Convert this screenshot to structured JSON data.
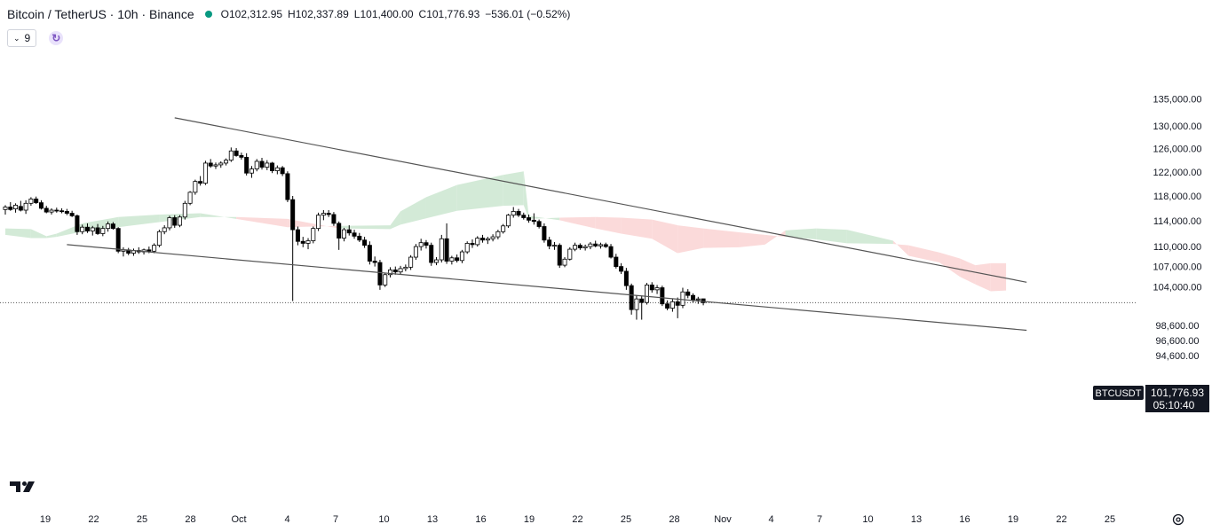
{
  "header": {
    "title": "Bitcoin / TetherUS · 10h · Binance",
    "open_label": "O",
    "open": "102,312.95",
    "high_label": "H",
    "high": "102,337.89",
    "low_label": "L",
    "low": "101,400.00",
    "close_label": "C",
    "close": "101,776.93",
    "change": "−536.01 (−0.52%)"
  },
  "indicators": {
    "count": "9"
  },
  "price_tag": {
    "symbol": "BTCUSDT",
    "price": "101,776.93",
    "countdown": "05:10:40"
  },
  "colors": {
    "up": "#ffffff",
    "down": "#000000",
    "candle_outline": "#000000",
    "cloud_bull": "#d3ead7",
    "cloud_bear": "#fbdada",
    "trendline": "#555555",
    "axis_text": "#131722"
  },
  "icons": [
    "chevron-down-icon",
    "sync-icon",
    "tradingview-logo",
    "settings-icon"
  ],
  "chart_data": {
    "type": "candlestick",
    "y_axis": {
      "ticks": [
        135000,
        130000,
        126000,
        122000,
        118000,
        114000,
        110000,
        107000,
        104000,
        98600,
        96600,
        94600
      ],
      "tick_labels": [
        "135,000.00",
        "130,000.00",
        "126,000.00",
        "122,000.00",
        "118,000.00",
        "114,000.00",
        "110,000.00",
        "107,000.00",
        "104,000.00",
        "98,600.00",
        "96,600.00",
        "94,600.00"
      ],
      "scale": "log"
    },
    "x_axis": {
      "labels": [
        "19",
        "22",
        "25",
        "28",
        "Oct",
        "4",
        "7",
        "10",
        "13",
        "16",
        "19",
        "22",
        "25",
        "28",
        "Nov",
        "4",
        "7",
        "10",
        "13",
        "16",
        "19",
        "22",
        "25"
      ]
    },
    "last_price": 101776.93,
    "candles": [
      {
        "o": 115800,
        "h": 116500,
        "l": 115000,
        "c": 116200
      },
      {
        "o": 116200,
        "h": 117000,
        "l": 115600,
        "c": 115800
      },
      {
        "o": 115900,
        "h": 116800,
        "l": 115300,
        "c": 116500
      },
      {
        "o": 116300,
        "h": 117200,
        "l": 115500,
        "c": 115700
      },
      {
        "o": 115700,
        "h": 117300,
        "l": 115100,
        "c": 116800
      },
      {
        "o": 116800,
        "h": 117800,
        "l": 116400,
        "c": 117500
      },
      {
        "o": 117500,
        "h": 117900,
        "l": 116700,
        "c": 116900
      },
      {
        "o": 116900,
        "h": 117300,
        "l": 115800,
        "c": 116000
      },
      {
        "o": 116000,
        "h": 116400,
        "l": 115200,
        "c": 115400
      },
      {
        "o": 115400,
        "h": 116000,
        "l": 115000,
        "c": 115700
      },
      {
        "o": 115700,
        "h": 116100,
        "l": 115300,
        "c": 115600
      },
      {
        "o": 115600,
        "h": 116000,
        "l": 115200,
        "c": 115500
      },
      {
        "o": 115500,
        "h": 115900,
        "l": 114900,
        "c": 115200
      },
      {
        "o": 115200,
        "h": 115600,
        "l": 114600,
        "c": 114800
      },
      {
        "o": 114800,
        "h": 115000,
        "l": 111800,
        "c": 112300
      },
      {
        "o": 112300,
        "h": 113400,
        "l": 111900,
        "c": 113000
      },
      {
        "o": 113000,
        "h": 113600,
        "l": 112100,
        "c": 112400
      },
      {
        "o": 112400,
        "h": 113200,
        "l": 111700,
        "c": 112900
      },
      {
        "o": 112900,
        "h": 113500,
        "l": 111800,
        "c": 112000
      },
      {
        "o": 112000,
        "h": 113200,
        "l": 111600,
        "c": 112800
      },
      {
        "o": 112800,
        "h": 113900,
        "l": 112300,
        "c": 113500
      },
      {
        "o": 113500,
        "h": 113800,
        "l": 112600,
        "c": 112800
      },
      {
        "o": 112800,
        "h": 113000,
        "l": 109000,
        "c": 109300
      },
      {
        "o": 109300,
        "h": 109900,
        "l": 108500,
        "c": 109500
      },
      {
        "o": 109500,
        "h": 109800,
        "l": 108700,
        "c": 109000
      },
      {
        "o": 109000,
        "h": 109700,
        "l": 108600,
        "c": 109400
      },
      {
        "o": 109400,
        "h": 109900,
        "l": 108900,
        "c": 109200
      },
      {
        "o": 109200,
        "h": 109700,
        "l": 108800,
        "c": 109500
      },
      {
        "o": 109500,
        "h": 110000,
        "l": 109000,
        "c": 109300
      },
      {
        "o": 109300,
        "h": 110500,
        "l": 109000,
        "c": 110200
      },
      {
        "o": 110200,
        "h": 112600,
        "l": 109900,
        "c": 112300
      },
      {
        "o": 112300,
        "h": 113300,
        "l": 111900,
        "c": 112900
      },
      {
        "o": 112900,
        "h": 114800,
        "l": 112500,
        "c": 114500
      },
      {
        "o": 114500,
        "h": 114900,
        "l": 112900,
        "c": 113300
      },
      {
        "o": 113300,
        "h": 114900,
        "l": 113000,
        "c": 114600
      },
      {
        "o": 114600,
        "h": 117200,
        "l": 114200,
        "c": 116800
      },
      {
        "o": 116800,
        "h": 118800,
        "l": 116500,
        "c": 118600
      },
      {
        "o": 118600,
        "h": 120700,
        "l": 118200,
        "c": 120400
      },
      {
        "o": 120400,
        "h": 121300,
        "l": 119700,
        "c": 120100
      },
      {
        "o": 120100,
        "h": 123900,
        "l": 119800,
        "c": 123500
      },
      {
        "o": 123500,
        "h": 124200,
        "l": 122700,
        "c": 123000
      },
      {
        "o": 123000,
        "h": 123600,
        "l": 122500,
        "c": 123200
      },
      {
        "o": 123200,
        "h": 123800,
        "l": 122700,
        "c": 123500
      },
      {
        "o": 123500,
        "h": 124300,
        "l": 123100,
        "c": 124000
      },
      {
        "o": 124000,
        "h": 126200,
        "l": 123700,
        "c": 125600
      },
      {
        "o": 125600,
        "h": 126100,
        "l": 124600,
        "c": 124800
      },
      {
        "o": 124800,
        "h": 125300,
        "l": 124100,
        "c": 124500
      },
      {
        "o": 124500,
        "h": 125200,
        "l": 121400,
        "c": 121800
      },
      {
        "o": 121800,
        "h": 123000,
        "l": 121000,
        "c": 122500
      },
      {
        "o": 122500,
        "h": 124200,
        "l": 122100,
        "c": 123800
      },
      {
        "o": 123800,
        "h": 124400,
        "l": 122400,
        "c": 122800
      },
      {
        "o": 122800,
        "h": 124000,
        "l": 122300,
        "c": 123500
      },
      {
        "o": 123500,
        "h": 123700,
        "l": 121800,
        "c": 122200
      },
      {
        "o": 122200,
        "h": 123100,
        "l": 121600,
        "c": 122700
      },
      {
        "o": 122700,
        "h": 123000,
        "l": 121300,
        "c": 121700
      },
      {
        "o": 121700,
        "h": 122100,
        "l": 117000,
        "c": 117400
      },
      {
        "o": 117400,
        "h": 118000,
        "l": 102000,
        "c": 112600
      },
      {
        "o": 112600,
        "h": 113100,
        "l": 110200,
        "c": 110800
      },
      {
        "o": 110800,
        "h": 111500,
        "l": 109900,
        "c": 110500
      },
      {
        "o": 110500,
        "h": 111300,
        "l": 109600,
        "c": 110900
      },
      {
        "o": 110900,
        "h": 113100,
        "l": 110500,
        "c": 112800
      },
      {
        "o": 112800,
        "h": 115300,
        "l": 112400,
        "c": 114900
      },
      {
        "o": 114900,
        "h": 115700,
        "l": 114100,
        "c": 115200
      },
      {
        "o": 115200,
        "h": 115700,
        "l": 114600,
        "c": 115000
      },
      {
        "o": 115000,
        "h": 115400,
        "l": 113200,
        "c": 113600
      },
      {
        "o": 113600,
        "h": 113900,
        "l": 109500,
        "c": 111300
      },
      {
        "o": 111300,
        "h": 112900,
        "l": 110800,
        "c": 112600
      },
      {
        "o": 112600,
        "h": 113300,
        "l": 111700,
        "c": 112100
      },
      {
        "o": 112100,
        "h": 112600,
        "l": 111200,
        "c": 111600
      },
      {
        "o": 111600,
        "h": 112100,
        "l": 110700,
        "c": 111000
      },
      {
        "o": 111000,
        "h": 111500,
        "l": 109800,
        "c": 110200
      },
      {
        "o": 110200,
        "h": 110800,
        "l": 107300,
        "c": 107800
      },
      {
        "o": 107800,
        "h": 108500,
        "l": 107000,
        "c": 107600
      },
      {
        "o": 107600,
        "h": 108000,
        "l": 103600,
        "c": 104300
      },
      {
        "o": 104300,
        "h": 106100,
        "l": 104000,
        "c": 105800
      },
      {
        "o": 105800,
        "h": 106900,
        "l": 105400,
        "c": 106500
      },
      {
        "o": 106500,
        "h": 107000,
        "l": 105800,
        "c": 106200
      },
      {
        "o": 106200,
        "h": 107100,
        "l": 105900,
        "c": 106700
      },
      {
        "o": 106700,
        "h": 107300,
        "l": 106300,
        "c": 106900
      },
      {
        "o": 106900,
        "h": 108700,
        "l": 106500,
        "c": 108400
      },
      {
        "o": 108400,
        "h": 110400,
        "l": 108000,
        "c": 110000
      },
      {
        "o": 110000,
        "h": 111200,
        "l": 109400,
        "c": 110600
      },
      {
        "o": 110600,
        "h": 111000,
        "l": 109700,
        "c": 110200
      },
      {
        "o": 110200,
        "h": 110600,
        "l": 107100,
        "c": 107600
      },
      {
        "o": 107600,
        "h": 108400,
        "l": 107200,
        "c": 108000
      },
      {
        "o": 108000,
        "h": 111800,
        "l": 107600,
        "c": 111200
      },
      {
        "o": 111200,
        "h": 113600,
        "l": 107400,
        "c": 107800
      },
      {
        "o": 107800,
        "h": 108600,
        "l": 107300,
        "c": 108300
      },
      {
        "o": 108300,
        "h": 108800,
        "l": 107600,
        "c": 107900
      },
      {
        "o": 107900,
        "h": 109500,
        "l": 107500,
        "c": 109200
      },
      {
        "o": 109200,
        "h": 110800,
        "l": 108900,
        "c": 110500
      },
      {
        "o": 110500,
        "h": 111100,
        "l": 109800,
        "c": 110300
      },
      {
        "o": 110300,
        "h": 111600,
        "l": 110000,
        "c": 111300
      },
      {
        "o": 111300,
        "h": 111800,
        "l": 110600,
        "c": 111000
      },
      {
        "o": 111000,
        "h": 111500,
        "l": 110400,
        "c": 111200
      },
      {
        "o": 111200,
        "h": 111900,
        "l": 110800,
        "c": 111500
      },
      {
        "o": 111500,
        "h": 112600,
        "l": 111100,
        "c": 112300
      },
      {
        "o": 112300,
        "h": 113500,
        "l": 112000,
        "c": 113200
      },
      {
        "o": 113200,
        "h": 115100,
        "l": 112900,
        "c": 114900
      },
      {
        "o": 114900,
        "h": 116200,
        "l": 114500,
        "c": 115500
      },
      {
        "o": 115500,
        "h": 115900,
        "l": 114600,
        "c": 114900
      },
      {
        "o": 114900,
        "h": 115300,
        "l": 114200,
        "c": 114500
      },
      {
        "o": 114500,
        "h": 115000,
        "l": 113700,
        "c": 114100
      },
      {
        "o": 114100,
        "h": 115200,
        "l": 113400,
        "c": 113900
      },
      {
        "o": 113900,
        "h": 114200,
        "l": 112800,
        "c": 113100
      },
      {
        "o": 113100,
        "h": 113600,
        "l": 110600,
        "c": 111000
      },
      {
        "o": 111000,
        "h": 111500,
        "l": 109600,
        "c": 110100
      },
      {
        "o": 110100,
        "h": 110700,
        "l": 109500,
        "c": 110200
      },
      {
        "o": 110200,
        "h": 110500,
        "l": 106800,
        "c": 107200
      },
      {
        "o": 107200,
        "h": 108400,
        "l": 106900,
        "c": 108100
      },
      {
        "o": 108100,
        "h": 109900,
        "l": 107900,
        "c": 109600
      },
      {
        "o": 109600,
        "h": 110600,
        "l": 109300,
        "c": 110200
      },
      {
        "o": 110200,
        "h": 110500,
        "l": 109500,
        "c": 109800
      },
      {
        "o": 109800,
        "h": 110300,
        "l": 109400,
        "c": 110000
      },
      {
        "o": 110000,
        "h": 110700,
        "l": 109600,
        "c": 110400
      },
      {
        "o": 110400,
        "h": 110900,
        "l": 109900,
        "c": 110100
      },
      {
        "o": 110100,
        "h": 110600,
        "l": 109700,
        "c": 110300
      },
      {
        "o": 110300,
        "h": 110600,
        "l": 109800,
        "c": 110000
      },
      {
        "o": 110000,
        "h": 110400,
        "l": 108200,
        "c": 108400
      },
      {
        "o": 108400,
        "h": 108900,
        "l": 106700,
        "c": 107000
      },
      {
        "o": 107000,
        "h": 107500,
        "l": 105900,
        "c": 106300
      },
      {
        "o": 106300,
        "h": 106800,
        "l": 103600,
        "c": 104200
      },
      {
        "o": 104200,
        "h": 104500,
        "l": 100100,
        "c": 100800
      },
      {
        "o": 100800,
        "h": 102800,
        "l": 99400,
        "c": 102300
      },
      {
        "o": 102300,
        "h": 102800,
        "l": 99400,
        "c": 101800
      },
      {
        "o": 101800,
        "h": 104600,
        "l": 101500,
        "c": 104300
      },
      {
        "o": 104300,
        "h": 104700,
        "l": 103200,
        "c": 103600
      },
      {
        "o": 103600,
        "h": 104300,
        "l": 103000,
        "c": 103900
      },
      {
        "o": 103900,
        "h": 104200,
        "l": 101300,
        "c": 101600
      },
      {
        "o": 101600,
        "h": 102100,
        "l": 100700,
        "c": 101000
      },
      {
        "o": 101000,
        "h": 102300,
        "l": 100500,
        "c": 101900
      },
      {
        "o": 101900,
        "h": 102500,
        "l": 99600,
        "c": 101400
      },
      {
        "o": 101400,
        "h": 103900,
        "l": 101000,
        "c": 103300
      },
      {
        "o": 103300,
        "h": 103700,
        "l": 102400,
        "c": 102800
      },
      {
        "o": 102800,
        "h": 103100,
        "l": 101800,
        "c": 102200
      },
      {
        "o": 102200,
        "h": 102600,
        "l": 101600,
        "c": 102300
      },
      {
        "o": 102312.95,
        "h": 102337.89,
        "l": 101400,
        "c": 101776.93
      }
    ],
    "trendlines": [
      {
        "t1": 33,
        "p1": 131500,
        "t2": 199,
        "p2": 104700
      },
      {
        "t1": 12,
        "p1": 110300,
        "t2": 199,
        "p2": 97950
      }
    ],
    "cloud": [
      {
        "i": 0,
        "a": 112800,
        "b": 111800
      },
      {
        "i": 5,
        "a": 112700,
        "b": 111300
      },
      {
        "i": 8,
        "a": 111600,
        "b": 111300
      },
      {
        "i": 10,
        "a": 112000,
        "b": 111500
      },
      {
        "i": 15,
        "a": 113600,
        "b": 112300
      },
      {
        "i": 22,
        "a": 114600,
        "b": 113000
      },
      {
        "i": 30,
        "a": 115000,
        "b": 113800
      },
      {
        "i": 38,
        "a": 115200,
        "b": 114600
      },
      {
        "i": 45,
        "a": 114300,
        "b": 114600
      },
      {
        "i": 55,
        "a": 113000,
        "b": 114300
      },
      {
        "i": 65,
        "a": 113200,
        "b": 112800
      },
      {
        "i": 75,
        "a": 113300,
        "b": 112700
      },
      {
        "i": 77,
        "a": 115500,
        "b": 113400
      },
      {
        "i": 82,
        "a": 117800,
        "b": 114400
      },
      {
        "i": 88,
        "a": 119800,
        "b": 115600
      },
      {
        "i": 97,
        "a": 121500,
        "b": 116400
      },
      {
        "i": 101,
        "a": 122100,
        "b": 116500
      },
      {
        "i": 102,
        "a": 114800,
        "b": 114300
      },
      {
        "i": 108,
        "a": 114100,
        "b": 114500
      },
      {
        "i": 115,
        "a": 112800,
        "b": 114600
      },
      {
        "i": 120,
        "a": 112000,
        "b": 114500
      },
      {
        "i": 126,
        "a": 111200,
        "b": 114200
      },
      {
        "i": 131,
        "a": 109000,
        "b": 113300
      },
      {
        "i": 136,
        "a": 109800,
        "b": 112800
      },
      {
        "i": 143,
        "a": 109900,
        "b": 112200
      },
      {
        "i": 148,
        "a": 110300,
        "b": 111800
      },
      {
        "i": 152,
        "a": 112500,
        "b": 111500
      },
      {
        "i": 158,
        "a": 112800,
        "b": 111100
      },
      {
        "i": 164,
        "a": 112600,
        "b": 110500
      },
      {
        "i": 173,
        "a": 110900,
        "b": 110400
      },
      {
        "i": 176,
        "a": 108600,
        "b": 110200
      },
      {
        "i": 182,
        "a": 107600,
        "b": 109100
      },
      {
        "i": 186,
        "a": 105500,
        "b": 108200
      },
      {
        "i": 189,
        "a": 104400,
        "b": 107200
      },
      {
        "i": 192,
        "a": 103400,
        "b": 107500
      },
      {
        "i": 195,
        "a": 103500,
        "b": 107500
      }
    ]
  }
}
